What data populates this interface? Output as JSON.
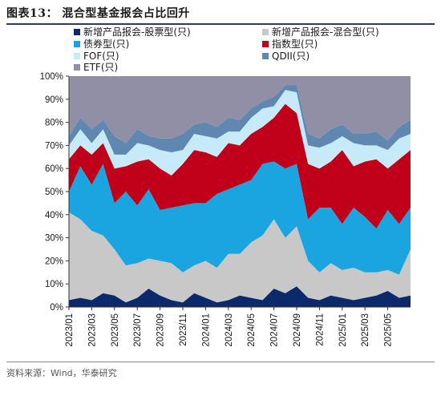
{
  "figure": {
    "title": "图表13：  混合型基金报会占比回升",
    "source": "资料来源：Wind，华泰研究"
  },
  "chart_data": {
    "type": "area",
    "stacked": true,
    "title": "",
    "xlabel": "",
    "ylabel": "",
    "ylim": [
      0,
      100
    ],
    "y_ticks": [
      "0%",
      "10%",
      "20%",
      "30%",
      "40%",
      "50%",
      "60%",
      "70%",
      "80%",
      "90%",
      "100%"
    ],
    "x_ticks": [
      "2023/01",
      "2023/03",
      "2023/05",
      "2023/07",
      "2023/09",
      "2023/11",
      "2024/01",
      "2024/03",
      "2024/05",
      "2024/07",
      "2024/09",
      "2024/11",
      "2025/01",
      "2025/03",
      "2025/05"
    ],
    "legend_position": "top",
    "x_periods": 31,
    "series": [
      {
        "name": "新增产品报会-股票型(只)",
        "color": "#0c2a6b",
        "values": [
          3,
          4,
          3,
          6,
          5,
          2,
          4,
          8,
          5,
          3,
          2,
          6,
          4,
          2,
          3,
          5,
          4,
          3,
          8,
          6,
          9,
          4,
          3,
          5,
          4,
          3,
          4,
          5,
          7,
          4,
          5
        ]
      },
      {
        "name": "新增产品报会-混合型(只)",
        "color": "#c8c8c8",
        "values": [
          38,
          34,
          30,
          25,
          20,
          16,
          15,
          13,
          15,
          16,
          13,
          12,
          16,
          15,
          20,
          18,
          24,
          28,
          30,
          24,
          26,
          16,
          12,
          14,
          12,
          14,
          11,
          10,
          9,
          10,
          20
        ]
      },
      {
        "name": "债券型(只)",
        "color": "#1aa5e0",
        "values": [
          9,
          23,
          20,
          31,
          20,
          32,
          25,
          30,
          22,
          24,
          29,
          27,
          25,
          32,
          28,
          30,
          27,
          31,
          25,
          30,
          27,
          18,
          28,
          24,
          20,
          26,
          24,
          19,
          26,
          22,
          18
        ]
      },
      {
        "name": "指数型(只)",
        "color": "#c0001a",
        "values": [
          14,
          9,
          13,
          9,
          15,
          11,
          19,
          13,
          18,
          14,
          18,
          23,
          22,
          16,
          20,
          17,
          20,
          16,
          19,
          28,
          22,
          24,
          17,
          20,
          32,
          18,
          24,
          30,
          18,
          28,
          25
        ]
      },
      {
        "name": "FOF(只)",
        "color": "#c7eaf8",
        "values": [
          6,
          7,
          5,
          6,
          6,
          5,
          8,
          6,
          8,
          10,
          6,
          7,
          7,
          8,
          5,
          6,
          7,
          8,
          5,
          6,
          9,
          8,
          9,
          8,
          6,
          10,
          7,
          6,
          8,
          9,
          7
        ]
      },
      {
        "name": "QDII(只)",
        "color": "#5f87b0",
        "values": [
          4,
          5,
          6,
          4,
          8,
          5,
          6,
          4,
          5,
          6,
          7,
          4,
          6,
          5,
          6,
          5,
          4,
          3,
          4,
          2,
          3,
          5,
          4,
          6,
          5,
          4,
          5,
          6,
          4,
          5,
          6
        ]
      },
      {
        "name": "ETF(只)",
        "color": "#918fa6",
        "values": [
          26,
          18,
          23,
          19,
          26,
          29,
          23,
          26,
          27,
          27,
          25,
          21,
          20,
          22,
          18,
          19,
          14,
          11,
          9,
          4,
          4,
          25,
          27,
          23,
          21,
          25,
          25,
          24,
          28,
          22,
          19
        ]
      }
    ]
  }
}
